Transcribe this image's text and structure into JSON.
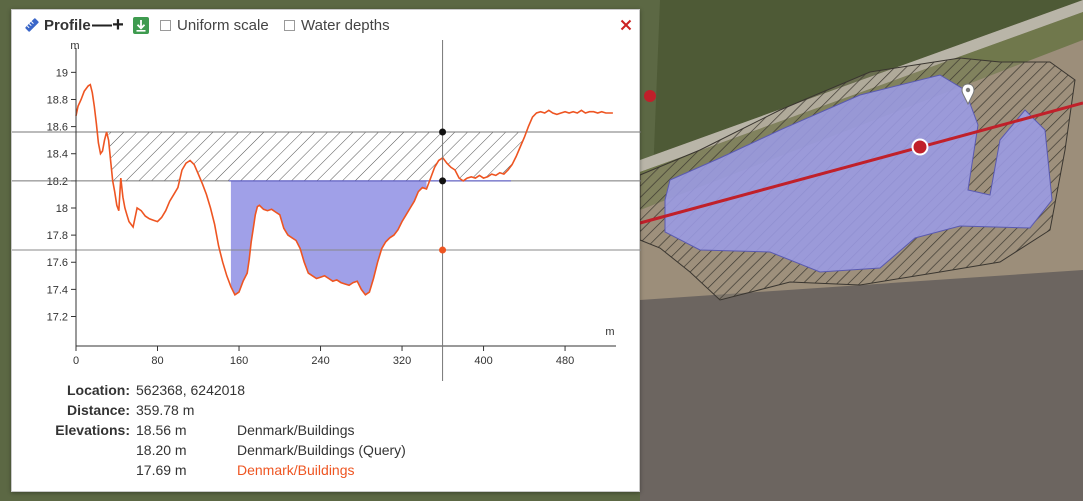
{
  "toolbar": {
    "title": "Profile",
    "zoom_out_label": "—",
    "zoom_in_label": "+",
    "uniform_scale_label": "Uniform scale",
    "water_depths_label": "Water depths"
  },
  "colors": {
    "profile_line": "#ee5522",
    "water_fill": "#a0a0e8",
    "close_icon": "#cc2222",
    "download_button": "#3e9b4f",
    "source_highlight": "#ee5522"
  },
  "icons": [
    "ruler-icon",
    "download-icon",
    "close-icon",
    "location-pin-icon"
  ],
  "chart_data": {
    "type": "line",
    "xlabel": "m",
    "ylabel": "m",
    "xlim": [
      0,
      530
    ],
    "ylim": [
      17.13,
      19.15
    ],
    "x_ticks": [
      0,
      80,
      160,
      240,
      320,
      400,
      480
    ],
    "y_ticks": [
      17.2,
      17.4,
      17.6,
      17.8,
      18,
      18.2,
      18.4,
      18.6,
      18.8,
      19
    ],
    "y_tick_labels": [
      "17.2",
      "17.4",
      "17.6",
      "17.8",
      "18",
      "18.2",
      "18.4",
      "18.6",
      "18.8",
      "19"
    ],
    "grid": false,
    "series": [
      {
        "x": [
          0,
          2,
          5,
          8,
          12,
          14,
          16,
          18,
          20,
          22,
          24,
          26,
          28,
          30,
          32,
          34,
          36,
          38,
          40,
          42,
          44,
          46,
          48,
          50,
          52,
          56,
          60,
          64,
          68,
          72,
          76,
          80,
          84,
          88,
          92,
          96,
          100,
          104,
          108,
          112,
          116,
          120,
          124,
          128,
          132,
          136,
          140,
          144,
          148,
          152,
          156,
          160,
          164,
          168,
          170,
          172,
          174,
          176,
          178,
          180,
          184,
          188,
          192,
          196,
          200,
          204,
          208,
          212,
          216,
          220,
          224,
          228,
          232,
          236,
          240,
          244,
          248,
          252,
          256,
          260,
          264,
          268,
          272,
          276,
          280,
          284,
          288,
          292,
          296,
          300,
          304,
          308,
          312,
          316,
          320,
          324,
          328,
          332,
          336,
          340,
          344,
          348,
          352,
          356,
          360,
          364,
          368,
          372,
          376,
          380,
          384,
          388,
          392,
          396,
          400,
          404,
          408,
          412,
          416,
          420,
          424,
          428,
          432,
          436,
          440,
          444,
          448,
          452,
          456,
          460,
          464,
          468,
          472,
          476,
          480,
          484,
          488,
          492,
          496,
          500,
          504,
          508,
          512,
          516,
          520,
          524,
          527
        ],
        "y": [
          18.68,
          18.75,
          18.8,
          18.86,
          18.9,
          18.91,
          18.85,
          18.75,
          18.62,
          18.48,
          18.4,
          18.42,
          18.5,
          18.56,
          18.5,
          18.35,
          18.2,
          18.12,
          18.02,
          17.98,
          18.22,
          18.08,
          18.0,
          17.95,
          17.9,
          17.86,
          18.0,
          17.98,
          17.94,
          17.92,
          17.91,
          17.9,
          17.93,
          17.98,
          18.05,
          18.1,
          18.15,
          18.28,
          18.33,
          18.35,
          18.32,
          18.25,
          18.18,
          18.1,
          18.0,
          17.88,
          17.72,
          17.6,
          17.5,
          17.42,
          17.36,
          17.38,
          17.46,
          17.52,
          17.62,
          17.75,
          17.85,
          17.95,
          18.01,
          18.02,
          17.99,
          17.98,
          17.99,
          17.97,
          17.95,
          17.85,
          17.8,
          17.78,
          17.76,
          17.7,
          17.6,
          17.52,
          17.5,
          17.48,
          17.49,
          17.5,
          17.48,
          17.46,
          17.47,
          17.45,
          17.44,
          17.43,
          17.45,
          17.46,
          17.4,
          17.36,
          17.38,
          17.48,
          17.6,
          17.7,
          17.75,
          17.78,
          17.8,
          17.84,
          17.9,
          17.95,
          18.0,
          18.05,
          18.12,
          18.15,
          18.14,
          18.22,
          18.3,
          18.35,
          18.37,
          18.33,
          18.3,
          18.28,
          18.22,
          18.2,
          18.22,
          18.23,
          18.22,
          18.24,
          18.22,
          18.23,
          18.25,
          18.24,
          18.26,
          18.25,
          18.28,
          18.32,
          18.38,
          18.45,
          18.52,
          18.6,
          18.67,
          18.7,
          18.71,
          18.7,
          18.72,
          18.7,
          18.69,
          18.7,
          18.71,
          18.7,
          18.71,
          18.7,
          18.72,
          18.7,
          18.71,
          18.71,
          18.7,
          18.71,
          18.7,
          18.7,
          18.7
        ]
      }
    ],
    "levels": [
      18.56,
      18.2,
      17.69
    ],
    "cursor_x": 359.78
  },
  "info": {
    "location_label": "Location:",
    "location_value": "562368, 6242018",
    "distance_label": "Distance:",
    "distance_value": "359.78 m",
    "elevations_label": "Elevations:",
    "elevations": [
      {
        "value": "18.56 m",
        "source": "Denmark/Buildings"
      },
      {
        "value": "18.20 m",
        "source": "Denmark/Buildings (Query)"
      },
      {
        "value": "17.69 m",
        "source": "Denmark/Buildings"
      }
    ]
  }
}
